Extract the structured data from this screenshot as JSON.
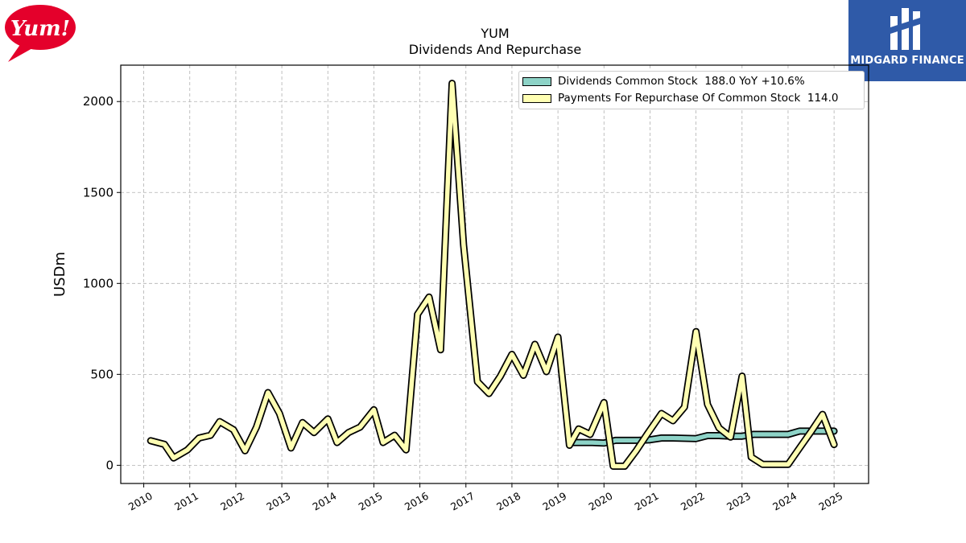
{
  "logos": {
    "left_text": "Yum!",
    "right_text": "MIDGARD FINANCE"
  },
  "colors": {
    "dividends": "#8dd3c7",
    "repurchase": "#ffffb3",
    "outline": "#000000",
    "grid": "#b0b0b0",
    "yum_red": "#e4002b",
    "midgard_blue": "#2f5aa8"
  },
  "chart_data": {
    "type": "line",
    "title": "YUM",
    "subtitle": "Dividends And Repurchase",
    "ylabel": "USDm",
    "xlabel": "",
    "ylim": [
      -100,
      2200
    ],
    "xlim": [
      2009.5,
      2025.75
    ],
    "yticks": [
      0,
      500,
      1000,
      1500,
      2000
    ],
    "xticks": [
      "2010",
      "2011",
      "2012",
      "2013",
      "2014",
      "2015",
      "2016",
      "2017",
      "2018",
      "2019",
      "2020",
      "2021",
      "2022",
      "2023",
      "2024",
      "2025"
    ],
    "grid": true,
    "legend_position": "top-right",
    "series": [
      {
        "name": "Dividends Common Stock",
        "legend_value": "188.0",
        "legend_extra": "YoY +10.6%",
        "x": [
          2019.25,
          2019.5,
          2019.75,
          2020.0,
          2020.25,
          2020.5,
          2020.75,
          2021.0,
          2021.25,
          2021.5,
          2021.75,
          2022.0,
          2022.25,
          2022.5,
          2022.75,
          2023.0,
          2023.25,
          2023.5,
          2023.75,
          2024.0,
          2024.25,
          2024.5,
          2024.75,
          2025.0
        ],
        "values": [
          125,
          125,
          125,
          122,
          137,
          137,
          137,
          140,
          150,
          150,
          148,
          147,
          163,
          163,
          160,
          160,
          170,
          170,
          170,
          170,
          188,
          188,
          188,
          188
        ]
      },
      {
        "name": "Payments For Repurchase Of Common Stock",
        "legend_value": "114.0",
        "legend_extra": "",
        "x": [
          2010.15,
          2010.45,
          2010.65,
          2010.95,
          2011.2,
          2011.45,
          2011.65,
          2011.95,
          2012.2,
          2012.45,
          2012.7,
          2012.95,
          2013.2,
          2013.45,
          2013.7,
          2014.0,
          2014.2,
          2014.45,
          2014.7,
          2015.0,
          2015.2,
          2015.45,
          2015.7,
          2015.95,
          2016.2,
          2016.45,
          2016.7,
          2016.95,
          2017.25,
          2017.5,
          2017.75,
          2018.0,
          2018.25,
          2018.5,
          2018.75,
          2019.0,
          2019.25,
          2019.45,
          2019.7,
          2020.0,
          2020.2,
          2020.45,
          2020.7,
          2020.95,
          2021.25,
          2021.5,
          2021.75,
          2022.0,
          2022.25,
          2022.5,
          2022.75,
          2023.0,
          2023.2,
          2023.45,
          2023.7,
          2024.0,
          2024.25,
          2024.5,
          2024.75,
          2025.0
        ],
        "values": [
          135,
          115,
          40,
          85,
          150,
          165,
          240,
          195,
          80,
          210,
          400,
          285,
          95,
          235,
          180,
          255,
          125,
          180,
          210,
          305,
          125,
          165,
          85,
          830,
          925,
          635,
          2100,
          1210,
          460,
          395,
          490,
          610,
          495,
          665,
          515,
          705,
          110,
          200,
          170,
          345,
          -5,
          -5,
          80,
          175,
          285,
          245,
          320,
          735,
          335,
          205,
          155,
          490,
          45,
          5,
          5,
          5,
          95,
          185,
          280,
          114
        ]
      }
    ]
  }
}
